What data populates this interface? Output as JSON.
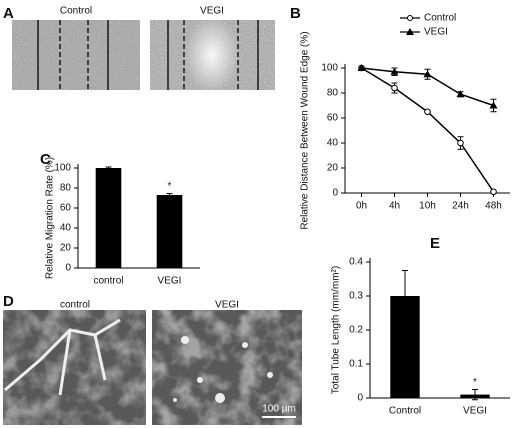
{
  "images": [
    {
      "panel": "A",
      "labels": [
        "Control",
        "VEGI"
      ]
    },
    {
      "panel": "D",
      "labels": [
        "control",
        "VEGI"
      ],
      "scale_bar": "100 µm"
    }
  ],
  "chart_data": [
    {
      "panel": "B",
      "type": "line",
      "ylabel": "Relative Distance Between Wound Edge (%)",
      "categories": [
        "0h",
        "4h",
        "10h",
        "24h",
        "48h"
      ],
      "series": [
        {
          "name": "Control",
          "color": "#000000",
          "marker": "open-circle",
          "values": [
            100,
            84,
            65,
            40,
            1
          ],
          "errors": [
            0,
            4,
            1,
            5,
            1
          ]
        },
        {
          "name": "VEGI",
          "color": "#000000",
          "marker": "filled-triangle",
          "values": [
            100,
            97,
            95,
            79,
            70
          ],
          "errors": [
            0,
            3,
            4,
            2,
            5
          ]
        }
      ],
      "ylim": [
        0,
        100
      ],
      "yticks": [
        0,
        20,
        40,
        60,
        80,
        100
      ],
      "legend": "upper right"
    },
    {
      "panel": "C",
      "type": "bar",
      "ylabel": "Relative Migration Rate (%)",
      "categories": [
        "control",
        "VEGI"
      ],
      "values": [
        100,
        73
      ],
      "errors": [
        1,
        1.5
      ],
      "color": "#000000",
      "annotations": [
        {
          "text": "*",
          "x": "VEGI"
        }
      ],
      "ylim": [
        0,
        100
      ],
      "yticks": [
        0,
        20,
        40,
        60,
        80,
        100
      ]
    },
    {
      "panel": "E",
      "type": "bar",
      "ylabel": "Total Tube Length (mm/mm²)",
      "categories": [
        "Control",
        "VEGI"
      ],
      "values": [
        0.3,
        0.01
      ],
      "errors": [
        0.075,
        0.015
      ],
      "color": "#000000",
      "annotations": [
        {
          "text": "*",
          "x": "VEGI"
        }
      ],
      "ylim": [
        0,
        0.4
      ],
      "yticks": [
        0,
        0.1,
        0.2,
        0.3,
        0.4
      ]
    }
  ]
}
